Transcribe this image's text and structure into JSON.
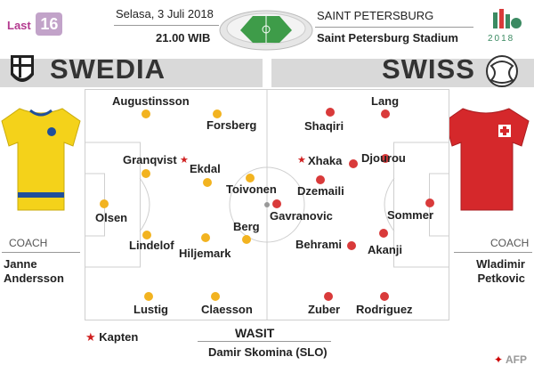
{
  "header": {
    "last_label": "Last",
    "last_number": "16",
    "date": "Selasa, 3 Juli 2018",
    "time": "21.00 WIB",
    "city": "SAINT PETERSBURG",
    "venue": "Saint Petersburg Stadium",
    "wc_year": "2018"
  },
  "teams": {
    "left": "SWEDIA",
    "right": "SWISS"
  },
  "sweden_players": [
    "Augustinsson",
    "Forsberg",
    "Granqvist",
    "Ekdal",
    "Toivonen",
    "Olsen",
    "Berg",
    "Lindelof",
    "Hiljemark",
    "Lustig",
    "Claesson"
  ],
  "swiss_players": [
    "Lang",
    "Shaqiri",
    "Xhaka",
    "Djourou",
    "Dzemaili",
    "Gavranovic",
    "Sommer",
    "Behrami",
    "Akanji",
    "Zuber",
    "Rodriguez"
  ],
  "coaches": {
    "label": "COACH",
    "left_line1": "Janne",
    "left_line2": "Andersson",
    "right_line1": "Wladimir",
    "right_line2": "Petkovic"
  },
  "footer": {
    "captain_label": "Kapten",
    "referee_label": "WASIT",
    "referee_name": "Damir Skomina  (SLO)",
    "credit": "AFP"
  },
  "colors": {
    "sweden_dot": "#f2b320",
    "swiss_dot": "#d93a3a",
    "captain_star": "#d02020"
  }
}
